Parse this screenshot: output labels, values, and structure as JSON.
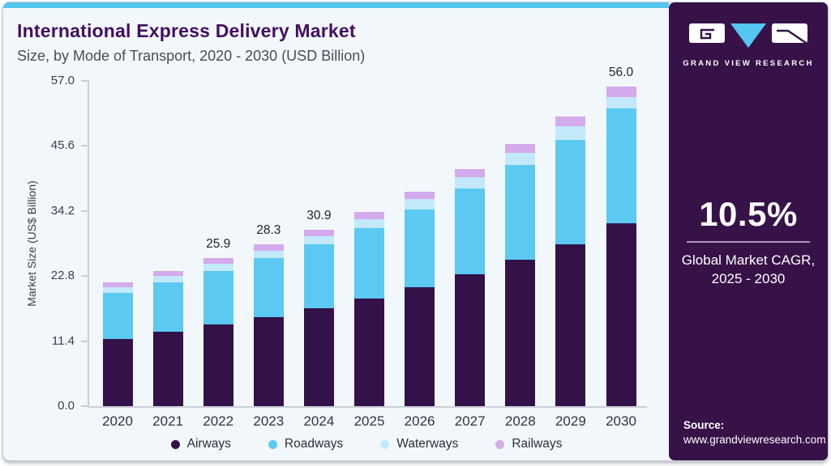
{
  "header": {
    "title": "International Express Delivery Market",
    "subtitle": "Size, by Mode of Transport, 2020 - 2030 (USD Billion)"
  },
  "sidebar": {
    "brand": "GRAND VIEW RESEARCH",
    "cagr_value": "10.5%",
    "cagr_line1": "Global Market CAGR,",
    "cagr_line2": "2025 - 2030",
    "source_label": "Source:",
    "source_url": "www.grandviewresearch.com",
    "background_color": "#361248",
    "accent_color": "#56C5EE"
  },
  "icons": {
    "logo_left_block": "gvr-g-block",
    "logo_triangle": "gvr-v-triangle",
    "logo_right_block": "gvr-r-block"
  },
  "chart_data": {
    "type": "bar",
    "stacked": true,
    "title": "International Express Delivery Market Size, by Mode of Transport, 2020 - 2030 (USD Billion)",
    "xlabel": "",
    "ylabel": "Market Size (US$ Billion)",
    "ylim": [
      0,
      57
    ],
    "yticks": [
      0.0,
      11.4,
      22.8,
      34.2,
      45.6,
      57.0
    ],
    "grid": false,
    "legend_position": "bottom",
    "categories": [
      "2020",
      "2021",
      "2022",
      "2023",
      "2024",
      "2025",
      "2026",
      "2027",
      "2028",
      "2029",
      "2030"
    ],
    "series": [
      {
        "name": "Airways",
        "color": "#331249",
        "values": [
          11.8,
          13.0,
          14.3,
          15.6,
          17.1,
          18.9,
          20.9,
          23.1,
          25.6,
          28.4,
          32.0
        ]
      },
      {
        "name": "Roadways",
        "color": "#5BC9F2",
        "values": [
          8.0,
          8.7,
          9.4,
          10.3,
          11.2,
          12.3,
          13.6,
          15.0,
          16.6,
          18.3,
          20.2
        ]
      },
      {
        "name": "Waterways",
        "color": "#C2E9FA",
        "values": [
          1.1,
          1.2,
          1.2,
          1.3,
          1.5,
          1.6,
          1.8,
          2.0,
          2.2,
          2.4,
          2.0
        ]
      },
      {
        "name": "Railways",
        "color": "#D3AAEC",
        "values": [
          0.8,
          0.8,
          1.0,
          1.1,
          1.1,
          1.2,
          1.3,
          1.4,
          1.5,
          1.6,
          1.8
        ]
      }
    ],
    "totals": [
      21.7,
      23.7,
      25.9,
      28.3,
      30.9,
      34.0,
      37.6,
      41.5,
      45.9,
      50.7,
      56.0
    ],
    "total_labels": [
      "",
      "",
      "25.9",
      "28.3",
      "30.9",
      "",
      "",
      "",
      "",
      "",
      "56.0"
    ]
  }
}
